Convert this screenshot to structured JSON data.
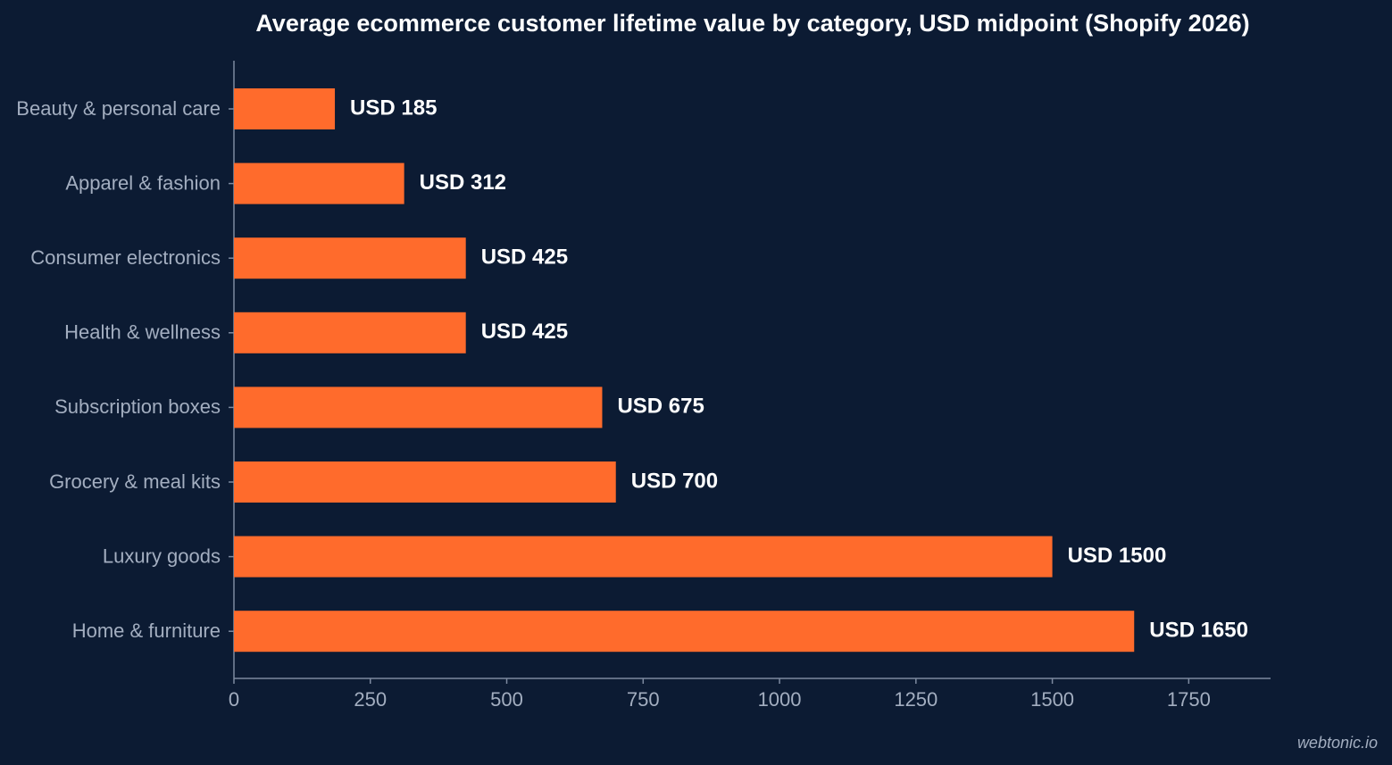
{
  "chart_data": {
    "type": "bar",
    "orientation": "horizontal",
    "title": "Average ecommerce customer lifetime value by category, USD midpoint (Shopify 2026)",
    "categories": [
      "Beauty & personal care",
      "Apparel & fashion",
      "Consumer electronics",
      "Health & wellness",
      "Subscription boxes",
      "Grocery & meal kits",
      "Luxury goods",
      "Home & furniture"
    ],
    "values": [
      185,
      312,
      425,
      425,
      675,
      700,
      1500,
      1650
    ],
    "value_labels": [
      "USD 185",
      "USD 312",
      "USD 425",
      "USD 425",
      "USD 675",
      "USD 700",
      "USD 1500",
      "USD 1650"
    ],
    "color": "#ff6b2c",
    "xlim": [
      0,
      1900
    ],
    "xticks": [
      0,
      250,
      500,
      750,
      1000,
      1250,
      1500,
      1750
    ],
    "grid": false,
    "credit": "webtonic.io"
  }
}
